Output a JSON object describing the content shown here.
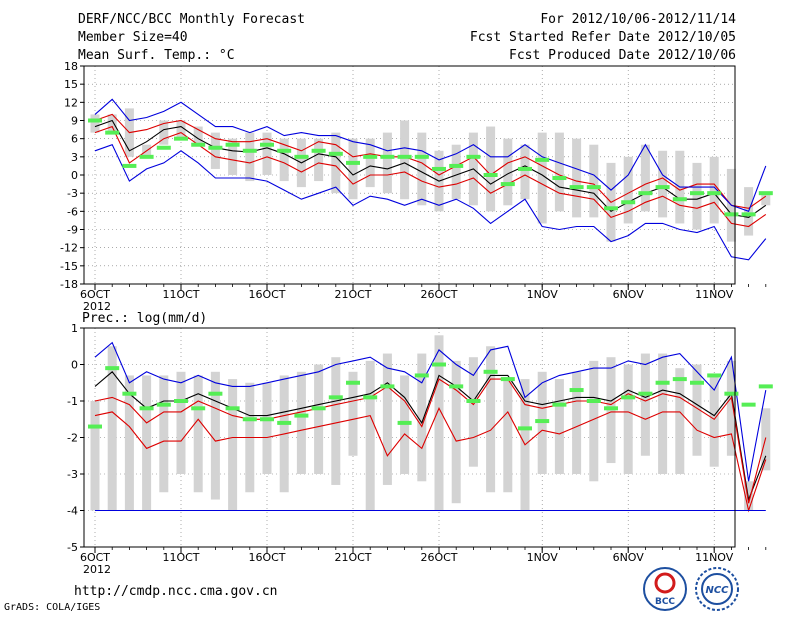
{
  "header": {
    "title": "DERF/NCC/BCC Monthly Forecast",
    "member_size": "Member Size=40",
    "variable": "Mean Surf. Temp.: °C",
    "period": "For 2012/10/06-2012/11/14",
    "started": "Fcst Started Refer Date 2012/10/05",
    "produced": "Fcst Produced Date 2012/10/06"
  },
  "footer": {
    "url": "http://cmdp.ncc.cma.gov.cn",
    "credit": "GrADS: COLA/IGES",
    "logo_bcc": "BCC",
    "logo_ncc": "NCC"
  },
  "colors": {
    "band": "#d3d3d3",
    "mean": "#55ee55",
    "ens": "#000000",
    "red": "#dd0000",
    "blue": "#0000dd"
  },
  "chart_data": [
    {
      "type": "line",
      "title": "Mean Surf. Temp.: °C",
      "x_days": [
        0,
        1,
        2,
        3,
        4,
        5,
        6,
        7,
        8,
        9,
        10,
        11,
        12,
        13,
        14,
        15,
        16,
        17,
        18,
        19,
        20,
        21,
        22,
        23,
        24,
        25,
        26,
        27,
        28,
        29,
        30,
        31,
        32,
        33,
        34,
        35,
        36,
        37,
        38,
        39
      ],
      "xtick_labels": [
        "6OCT",
        "11OCT",
        "16OCT",
        "21OCT",
        "26OCT",
        "1NOV",
        "6NOV",
        "11NOV"
      ],
      "xtick_days": [
        0,
        5,
        10,
        15,
        20,
        26,
        31,
        36
      ],
      "year_label": "2012",
      "ylim": [
        -18,
        18
      ],
      "yticks": [
        -18,
        -15,
        -12,
        -9,
        -6,
        -3,
        0,
        3,
        6,
        9,
        12,
        15,
        18
      ],
      "series": [
        {
          "name": "ensemble-mean",
          "color": "#000000",
          "values": [
            8,
            9,
            4,
            5.5,
            7.5,
            8,
            6,
            4.5,
            4,
            3.8,
            4.5,
            3.5,
            2,
            3.5,
            3,
            0,
            1.5,
            1,
            2,
            0.5,
            -1,
            0,
            1,
            -1.5,
            0.2,
            1.5,
            0,
            -2,
            -2.5,
            -3,
            -6,
            -4.5,
            -3,
            -2,
            -4,
            -4,
            -3,
            -6.5,
            -7,
            -5
          ]
        },
        {
          "name": "upper-red",
          "color": "#dd0000",
          "values": [
            9,
            10,
            7,
            7.5,
            8.5,
            9,
            7.5,
            6,
            5.5,
            5.5,
            6,
            5,
            4,
            5.5,
            5,
            3,
            3.5,
            3,
            3,
            2,
            0,
            1.5,
            3,
            0,
            2,
            3,
            1.5,
            0,
            -1,
            -1.5,
            -4.5,
            -3,
            -1.5,
            -0.5,
            -2.5,
            -1.5,
            -1.5,
            -5,
            -5.5,
            -3.5
          ]
        },
        {
          "name": "lower-red",
          "color": "#dd0000",
          "values": [
            7,
            8,
            2,
            4,
            6,
            7,
            5,
            3,
            2.5,
            2,
            3,
            2,
            0.5,
            2,
            1.5,
            -1.5,
            0,
            0,
            0.5,
            -1,
            -2,
            -1.5,
            -0.5,
            -3,
            -1.5,
            0,
            -1.5,
            -3,
            -3.5,
            -4,
            -7,
            -6,
            -4.5,
            -3.5,
            -5,
            -5.5,
            -4.5,
            -8,
            -8.5,
            -6.5
          ]
        },
        {
          "name": "upper-blue",
          "color": "#0000dd",
          "values": [
            10,
            12.5,
            9,
            9.5,
            10.5,
            12,
            10,
            8,
            8,
            7,
            8,
            6.5,
            7,
            6.5,
            6.5,
            5.5,
            5,
            4,
            4.5,
            4,
            2.5,
            3.5,
            5,
            3,
            3,
            5,
            3,
            2,
            1,
            0,
            -2.5,
            0,
            5,
            0,
            -2,
            -2,
            -2,
            -5,
            -6,
            1.5
          ]
        },
        {
          "name": "lower-blue",
          "color": "#0000dd",
          "values": [
            4,
            5,
            -1,
            1,
            2,
            4,
            2,
            -0.5,
            -0.5,
            -0.5,
            -1,
            -2.5,
            -4,
            -3,
            -2,
            -5,
            -3.5,
            -4,
            -5,
            -4,
            -5,
            -4,
            -5.5,
            -8,
            -6,
            -4,
            -8.5,
            -9,
            -8.5,
            -8.5,
            -11,
            -10,
            -8,
            -8,
            -9,
            -9.5,
            -8.5,
            -13.5,
            -14,
            -10.5
          ]
        }
      ],
      "band_top": [
        10,
        10,
        11,
        5,
        9,
        9,
        8,
        7,
        6,
        7,
        7,
        6,
        6,
        6,
        7,
        6,
        6,
        7,
        9,
        7,
        4,
        5,
        7,
        8,
        6,
        5,
        7,
        7,
        6,
        5,
        2,
        3,
        5,
        4,
        4,
        2,
        3,
        1,
        -2,
        -3
      ],
      "band_bottom": [
        7,
        7,
        3,
        3,
        5,
        6,
        5,
        1,
        0,
        -1,
        0,
        -1,
        -2,
        -1,
        -3,
        -4,
        -2,
        -3,
        -4,
        -5,
        -6,
        -4,
        -5,
        -6,
        -5,
        -4,
        -8,
        -6,
        -7,
        -7,
        -11,
        -8,
        -6,
        -7,
        -8,
        -9,
        -8,
        -11,
        -10,
        -5
      ],
      "mean_bars": [
        9,
        7,
        1.5,
        3,
        4.5,
        6,
        5,
        4.5,
        5,
        4,
        5,
        4,
        3,
        4,
        3.5,
        2,
        3,
        3,
        3,
        3,
        1,
        1.5,
        3,
        0,
        -1.5,
        1,
        2.5,
        -0.5,
        -2,
        -2,
        -5.5,
        -4.5,
        -3,
        -2,
        -4,
        -3,
        -3,
        -6.5,
        -6.5,
        -3
      ]
    },
    {
      "type": "line",
      "title": "Prec.: log(mm/d)",
      "x_days": [
        0,
        1,
        2,
        3,
        4,
        5,
        6,
        7,
        8,
        9,
        10,
        11,
        12,
        13,
        14,
        15,
        16,
        17,
        18,
        19,
        20,
        21,
        22,
        23,
        24,
        25,
        26,
        27,
        28,
        29,
        30,
        31,
        32,
        33,
        34,
        35,
        36,
        37,
        38,
        39
      ],
      "xtick_labels": [
        "6OCT",
        "11OCT",
        "16OCT",
        "21OCT",
        "26OCT",
        "1NOV",
        "6NOV",
        "11NOV"
      ],
      "xtick_days": [
        0,
        5,
        10,
        15,
        20,
        26,
        31,
        36
      ],
      "year_label": "2012",
      "ylim": [
        -5,
        1
      ],
      "yticks": [
        -5,
        -4,
        -3,
        -2,
        -1,
        0,
        1
      ],
      "baseline": -4,
      "series": [
        {
          "name": "ensemble-mean",
          "color": "#000000",
          "values": [
            -0.6,
            -0.2,
            -0.8,
            -1.2,
            -1,
            -1,
            -0.8,
            -1,
            -1.2,
            -1.4,
            -1.4,
            -1.3,
            -1.2,
            -1.1,
            -1,
            -0.9,
            -0.8,
            -0.5,
            -0.9,
            -1.6,
            -0.3,
            -0.6,
            -1,
            -0.3,
            -0.3,
            -1,
            -1.1,
            -1,
            -0.9,
            -0.9,
            -1,
            -0.7,
            -0.9,
            -0.7,
            -0.8,
            -1.1,
            -1.4,
            -0.8,
            -3.7,
            -2.5
          ]
        },
        {
          "name": "upper-red",
          "color": "#dd0000",
          "values": [
            -1,
            -0.9,
            -1.1,
            -1.6,
            -1.3,
            -1.3,
            -1.0,
            -1.2,
            -1.4,
            -1.5,
            -1.5,
            -1.4,
            -1.3,
            -1.2,
            -1.1,
            -1.0,
            -0.9,
            -0.6,
            -1.0,
            -1.7,
            -0.4,
            -0.7,
            -1.1,
            -0.4,
            -0.4,
            -1.1,
            -1.2,
            -1.1,
            -1.0,
            -1.0,
            -1.1,
            -0.8,
            -1.0,
            -0.8,
            -0.9,
            -1.2,
            -1.5,
            -0.9,
            -3.8,
            -2.0
          ]
        },
        {
          "name": "lower-red",
          "color": "#dd0000",
          "values": [
            -1.4,
            -1.3,
            -1.7,
            -2.3,
            -2.1,
            -2.1,
            -1.5,
            -2.1,
            -2.0,
            -2.0,
            -2.0,
            -1.9,
            -1.8,
            -1.7,
            -1.6,
            -1.5,
            -1.4,
            -2.5,
            -1.9,
            -2.3,
            -1.2,
            -2.1,
            -2.0,
            -1.8,
            -1.3,
            -2.2,
            -1.8,
            -1.9,
            -1.7,
            -1.5,
            -1.3,
            -1.3,
            -1.5,
            -1.3,
            -1.3,
            -1.8,
            -2.0,
            -1.9,
            -4.0,
            -2.6
          ]
        },
        {
          "name": "upper-blue",
          "color": "#0000dd",
          "values": [
            0.2,
            0.6,
            -0.5,
            -0.2,
            -0.4,
            -0.5,
            -0.3,
            -0.5,
            -0.6,
            -0.6,
            -0.5,
            -0.4,
            -0.3,
            -0.2,
            0,
            0.1,
            0.2,
            -0.1,
            -0.2,
            -0.5,
            0.4,
            0.0,
            -0.3,
            0.4,
            0.5,
            -0.9,
            -0.5,
            -0.3,
            -0.2,
            -0.1,
            -0.1,
            0.1,
            0.0,
            0.2,
            0.3,
            -0.2,
            -0.7,
            0.2,
            -3.2,
            -0.7
          ]
        },
        {
          "name": "lower-blue",
          "color": "#0000dd",
          "values": [
            -4,
            -4,
            -4,
            -4,
            -4,
            -4,
            -4,
            -4,
            -4,
            -4,
            -4,
            -4,
            -4,
            -4,
            -4,
            -4,
            -4,
            -4,
            -4,
            -4,
            -4,
            -4,
            -4,
            -4,
            -4,
            -4,
            -4,
            -4,
            -4,
            -4,
            -4,
            -4,
            -4,
            -4,
            -4,
            -4,
            -4,
            -4,
            -4,
            -4
          ]
        }
      ],
      "band_top": [
        -1,
        0.5,
        -0.3,
        -0.3,
        -0.3,
        -0.2,
        -0.3,
        -0.2,
        -0.4,
        -0.5,
        -0.5,
        -0.3,
        -0.2,
        0,
        0.2,
        -0.2,
        0.1,
        0.3,
        -0.3,
        0.3,
        0.8,
        0.1,
        0.2,
        0.5,
        -0.4,
        -0.4,
        -0.2,
        -0.4,
        -0.2,
        0.1,
        0.2,
        0,
        0.3,
        0.3,
        -0.1,
        0,
        -0.3,
        0.1,
        -3.2,
        -1.2
      ],
      "band_bottom": [
        -4,
        -4,
        -4,
        -4,
        -3.5,
        -3,
        -3.5,
        -3.7,
        -4,
        -3.5,
        -3,
        -3.5,
        -3,
        -3,
        -3.3,
        -2.5,
        -4,
        -3.3,
        -3,
        -3.2,
        -4,
        -3.8,
        -2.8,
        -3.5,
        -3.5,
        -4,
        -3,
        -3,
        -3,
        -3.2,
        -2.7,
        -3,
        -2.5,
        -3,
        -3,
        -2.5,
        -2.8,
        -2.5,
        -4,
        -2.9
      ],
      "mean_bars": [
        -1.7,
        -0.1,
        -0.8,
        -1.2,
        -1.1,
        -1,
        -1.2,
        -0.8,
        -1.2,
        -1.5,
        -1.5,
        -1.6,
        -1.4,
        -1.2,
        -0.9,
        -0.5,
        -0.9,
        -0.6,
        -1.6,
        -0.3,
        0,
        -0.6,
        -1,
        -0.2,
        -0.4,
        -1.75,
        -1.55,
        -1.1,
        -0.7,
        -1,
        -1.2,
        -0.9,
        -0.8,
        -0.5,
        -0.4,
        -0.5,
        -0.3,
        -0.8,
        -1.1,
        -0.6
      ]
    }
  ]
}
